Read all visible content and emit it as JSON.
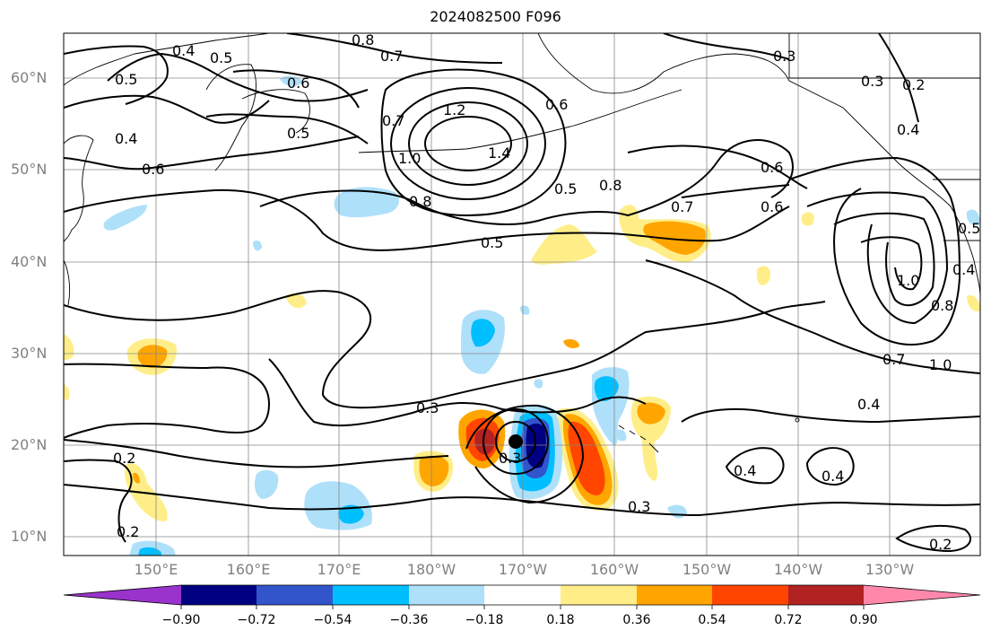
{
  "title": "2024082500 F096",
  "lat_labels": [
    "60°N",
    "50°N",
    "40°N",
    "30°N",
    "20°N",
    "10°N"
  ],
  "lon_labels": [
    "150°E",
    "160°E",
    "170°E",
    "180°W",
    "170°W",
    "160°W",
    "150°W",
    "140°W",
    "130°W"
  ],
  "colorbar": {
    "colors": [
      "#9933cc",
      "#000080",
      "#3355cc",
      "#00bfff",
      "#aee0fa",
      "#ffffff",
      "#ffee88",
      "#ffa500",
      "#ff4500",
      "#b22222",
      "#ff88aa"
    ],
    "ticks": [
      "−0.90",
      "−0.72",
      "−0.54",
      "−0.36",
      "−0.18",
      "0.18",
      "0.36",
      "0.54",
      "0.72",
      "0.90"
    ]
  },
  "contour_labels": [
    "0.4",
    "0.5",
    "0.8",
    "0.7",
    "0.5",
    "0.6",
    "0.5",
    "0.4",
    "0.6",
    "0.7",
    "1.2",
    "1.4",
    "1.0",
    "0.6",
    "0.5",
    "0.8",
    "0.3",
    "0.3",
    "0.2",
    "0.4",
    "0.8",
    "0.6",
    "0.7",
    "0.6",
    "0.5",
    "1.0",
    "0.8",
    "0.5",
    "0.4",
    "0.7",
    "1.0",
    "0.4",
    "0.3",
    "0.2",
    "0.2",
    "0.3",
    "0.4",
    "0.4",
    "0.3",
    "0.2"
  ]
}
